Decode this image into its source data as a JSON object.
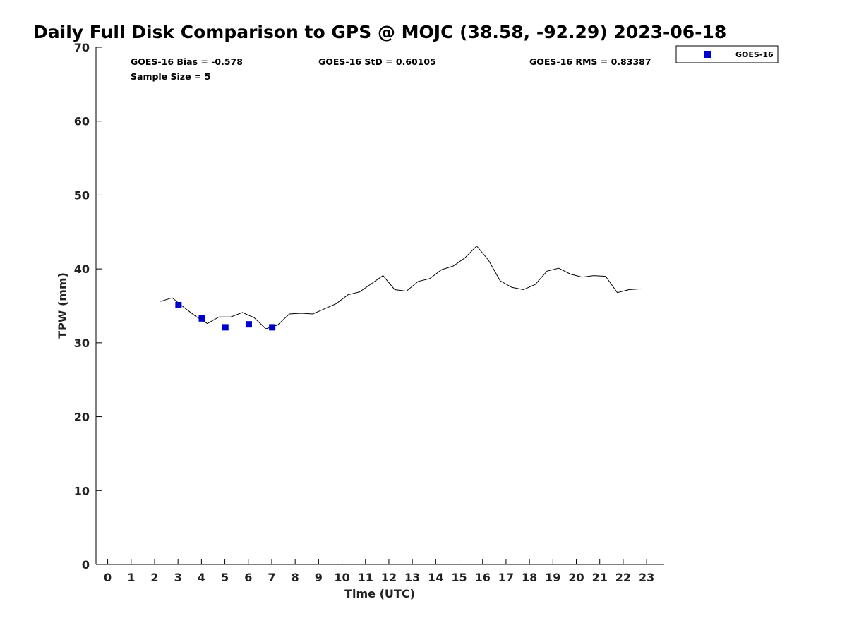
{
  "chart_data": {
    "type": "line",
    "title": "Daily Full Disk Comparison to GPS @ MOJC (38.58, -92.29) 2023-06-18",
    "xlabel": "Time (UTC)",
    "ylabel": "TPW (mm)",
    "xlim": [
      -0.5,
      23.75
    ],
    "ylim": [
      0,
      70
    ],
    "x_ticks": [
      "0",
      "1",
      "2",
      "3",
      "4",
      "5",
      "6",
      "7",
      "8",
      "9",
      "10",
      "11",
      "12",
      "13",
      "14",
      "15",
      "16",
      "17",
      "18",
      "19",
      "20",
      "21",
      "22",
      "23"
    ],
    "y_ticks": [
      "0",
      "10",
      "20",
      "30",
      "40",
      "50",
      "60",
      "70"
    ],
    "series": [
      {
        "name": "GPS",
        "style": "line",
        "color": "#000000",
        "x": [
          2.25,
          2.75,
          3.25,
          3.75,
          4.25,
          4.75,
          5.25,
          5.75,
          6.25,
          6.75,
          7.25,
          7.75,
          8.25,
          8.75,
          9.25,
          9.75,
          10.25,
          10.75,
          11.25,
          11.75,
          12.25,
          12.75,
          13.25,
          13.75,
          14.25,
          14.75,
          15.25,
          15.75,
          16.25,
          16.75,
          17.25,
          17.75,
          18.25,
          18.75,
          19.25,
          19.75,
          20.25,
          20.75,
          21.25,
          21.75,
          22.25,
          22.75
        ],
        "y": [
          35.6,
          36.1,
          34.8,
          33.6,
          32.6,
          33.5,
          33.5,
          34.1,
          33.4,
          31.9,
          32.4,
          33.9,
          34.0,
          33.9,
          34.6,
          35.3,
          36.5,
          36.9,
          38.0,
          39.1,
          37.2,
          37.0,
          38.3,
          38.7,
          39.9,
          40.4,
          41.5,
          43.1,
          41.2,
          38.4,
          37.5,
          37.2,
          37.9,
          39.7,
          40.1,
          39.3,
          38.9,
          39.1,
          39.0,
          36.8,
          37.2,
          37.3
        ]
      },
      {
        "name": "GOES-16",
        "style": "scatter",
        "color": "#0000cc",
        "x": [
          3.02,
          4.02,
          5.02,
          6.02,
          7.02
        ],
        "y": [
          35.1,
          33.3,
          32.1,
          32.5,
          32.1
        ]
      }
    ],
    "annotations": {
      "bias": "GOES-16 Bias = -0.578",
      "sample_size": "Sample Size = 5",
      "std": "GOES-16 StD = 0.60105",
      "rms": "GOES-16 RMS = 0.83387"
    },
    "legend": {
      "position": "top-right-outside",
      "entries": [
        "GOES-16"
      ]
    },
    "grid": false
  }
}
